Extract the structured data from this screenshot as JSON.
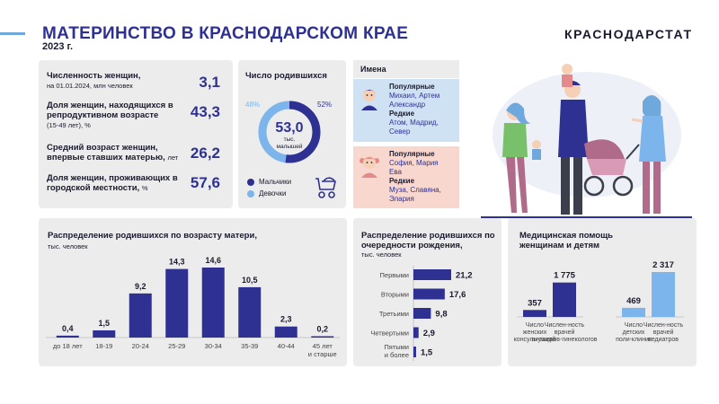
{
  "header": {
    "title": "МАТЕРИНСТВО В КРАСНОДАРСКОМ КРАЕ",
    "year": "2023 г.",
    "brand": "КРАСНОДАРСТАТ"
  },
  "colors": {
    "navy": "#2e3192",
    "light_blue": "#7cb5ec",
    "panel": "#ececec",
    "boys_bg": "#cfe2f3",
    "girls_bg": "#f8d7cf"
  },
  "stats": [
    {
      "label": "Численность женщин,",
      "sub": "на 01.01.2024,  млн человек",
      "value": "3,1"
    },
    {
      "label": "Доля женщин, находящихся в репродуктивном возрасте",
      "sub": "(15-49  лет),  %",
      "value": "43,3"
    },
    {
      "label": "Средний возраст женщин, впервые ставших матерью,",
      "sub": "лет",
      "value": "26,2"
    },
    {
      "label": "Доля женщин, проживающих в городской местности,",
      "sub": "%",
      "value": "57,6"
    }
  ],
  "births": {
    "title": "Число родившихся",
    "total": "53,0",
    "unit_line1": "тыс.",
    "unit_line2": "малышей",
    "girls_pct_label": "48%",
    "boys_pct_label": "52%",
    "boys_label": "Мальчики",
    "girls_label": "Девочки",
    "boys_share": 52,
    "girls_share": 48
  },
  "names": {
    "title": "Имена",
    "boys": {
      "popular_h": "Популярные",
      "popular_lines": [
        "Михаил, Артем",
        "Александр"
      ],
      "rare_h": "Редкие",
      "rare_lines": [
        "Атом, Мадрид,",
        "Север"
      ]
    },
    "girls": {
      "popular_h": "Популярные",
      "popular_lines": [
        "София, Мария",
        "Ева"
      ],
      "rare_h": "Редкие",
      "rare_lines": [
        "Муза, Славяна,",
        "Элария"
      ]
    }
  },
  "chart_data": [
    {
      "type": "bar",
      "title": "Распределение родившихся по возрасту матери,",
      "subtitle": "тыс. человек",
      "categories": [
        "до 18 лет",
        "18-19",
        "20-24",
        "25-29",
        "30-34",
        "35-39",
        "40-44",
        "45 лет и старше"
      ],
      "values": [
        0.4,
        1.5,
        9.2,
        14.3,
        14.6,
        10.5,
        2.3,
        0.2
      ],
      "value_labels": [
        "0,4",
        "1,5",
        "9,2",
        "14,3",
        "14,6",
        "10,5",
        "2,3",
        "0,2"
      ]
    },
    {
      "type": "bar",
      "orientation": "horizontal",
      "title": "Распределение родившихся по очередности рождения,",
      "subtitle": "тыс. человек",
      "categories": [
        "Первыми",
        "Вторыми",
        "Третьими",
        "Четвертыми",
        "Пятыми и более"
      ],
      "values": [
        21.2,
        17.6,
        9.8,
        2.9,
        1.5
      ],
      "value_labels": [
        "21,2",
        "17,6",
        "9,8",
        "2,9",
        "1,5"
      ]
    },
    {
      "type": "bar",
      "title": "Медицинская помощь женщинам и детям",
      "series": [
        {
          "categories": [
            "Число женских консуль-таций",
            "Числен-ность врачей акушеров-гинекологов"
          ],
          "values": [
            357,
            1775
          ],
          "value_labels": [
            "357",
            "1 775"
          ],
          "color": "#2e3192"
        },
        {
          "categories": [
            "Число детских поли-клиник",
            "Числен-ность врачей педиатров"
          ],
          "values": [
            469,
            2317
          ],
          "value_labels": [
            "469",
            "2 317"
          ],
          "color": "#7cb5ec"
        }
      ]
    }
  ]
}
